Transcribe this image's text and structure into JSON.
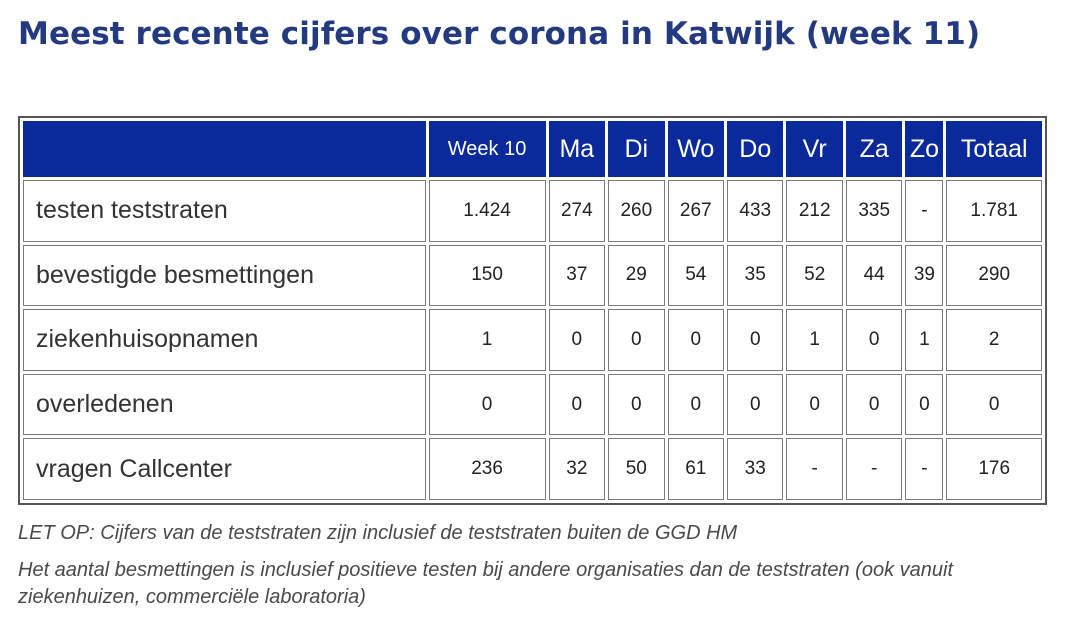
{
  "title": "Meest recente cijfers over corona in Katwijk (week 11)",
  "table": {
    "columns": [
      "",
      "Week 10",
      "Ma",
      "Di",
      "Wo",
      "Do",
      "Vr",
      "Za",
      "Zo",
      "Totaal"
    ],
    "rows": [
      {
        "label": "testen teststraten",
        "values": [
          "1.424",
          "274",
          "260",
          "267",
          "433",
          "212",
          "335",
          "-",
          "1.781"
        ]
      },
      {
        "label": "bevestigde besmettingen",
        "values": [
          "150",
          "37",
          "29",
          "54",
          "35",
          "52",
          "44",
          "39",
          "290"
        ]
      },
      {
        "label": "ziekenhuisopnamen",
        "values": [
          "1",
          "0",
          "0",
          "0",
          "0",
          "1",
          "0",
          "1",
          "2"
        ]
      },
      {
        "label": "overledenen",
        "values": [
          "0",
          "0",
          "0",
          "0",
          "0",
          "0",
          "0",
          "0",
          "0"
        ]
      },
      {
        "label": "vragen Callcenter",
        "values": [
          "236",
          "32",
          "50",
          "61",
          "33",
          "-",
          "-",
          "-",
          "176"
        ]
      }
    ]
  },
  "notes": [
    "LET OP: Cijfers van de teststraten zijn inclusief de teststraten buiten de GGD HM",
    "Het aantal besmettingen is inclusief positieve testen bij andere organisaties dan de teststraten (ook vanuit ziekenhuizen, commerciële laboratoria)"
  ],
  "colors": {
    "title": "#233a80",
    "header_bg": "#0a2a9c"
  }
}
